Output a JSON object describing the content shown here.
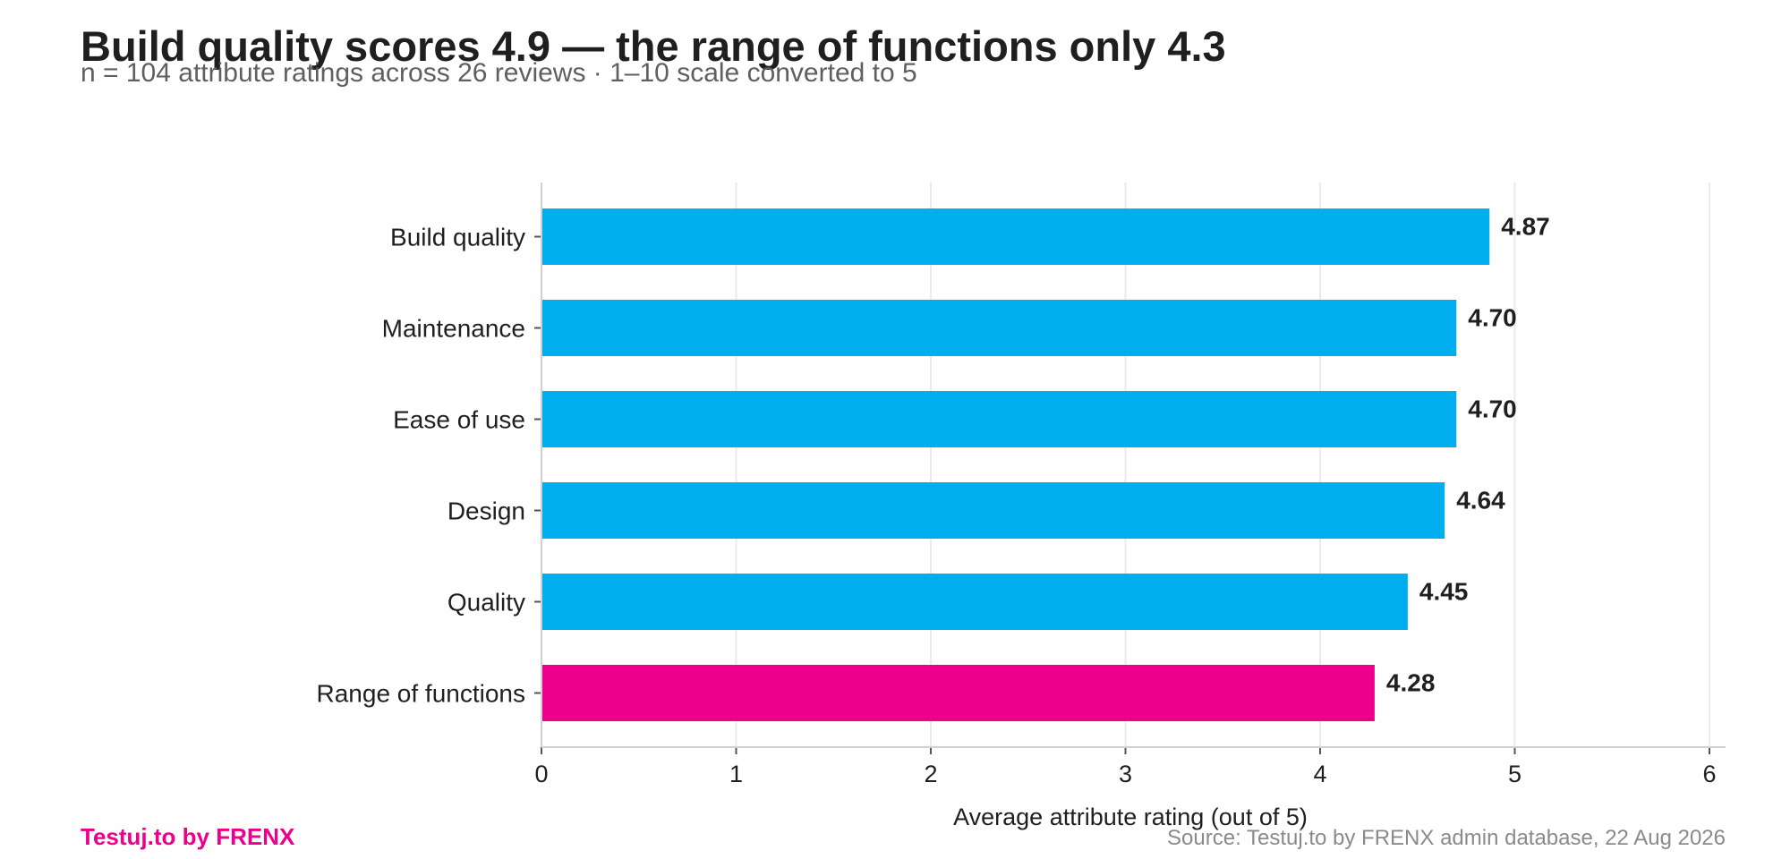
{
  "chart_data": {
    "type": "bar",
    "orientation": "horizontal",
    "title": "Build quality scores 4.9 — the range of functions only 4.3",
    "subtitle": "n = 104 attribute ratings across 26 reviews · 1–10 scale converted to 5",
    "categories": [
      "Build quality",
      "Maintenance",
      "Ease of use",
      "Design",
      "Quality",
      "Range of functions"
    ],
    "values": [
      4.87,
      4.7,
      4.7,
      4.64,
      4.45,
      4.28
    ],
    "value_labels": [
      "4.87",
      "4.70",
      "4.70",
      "4.64",
      "4.45",
      "4.28"
    ],
    "xlabel": "Average attribute rating (out of 5)",
    "ylabel": "",
    "xlim": [
      0,
      6
    ],
    "xticks": [
      0,
      1,
      2,
      3,
      4,
      5,
      6
    ],
    "grid": true,
    "legend": "none",
    "bar_colors": [
      "#00adef",
      "#00adef",
      "#00adef",
      "#00adef",
      "#00adef",
      "#ec008c"
    ]
  },
  "footer": {
    "brand": "Testuj.to by FRENX",
    "brand_color": "#ec008c",
    "source": "Source: Testuj.to by FRENX admin database, 22 Aug 2026"
  }
}
